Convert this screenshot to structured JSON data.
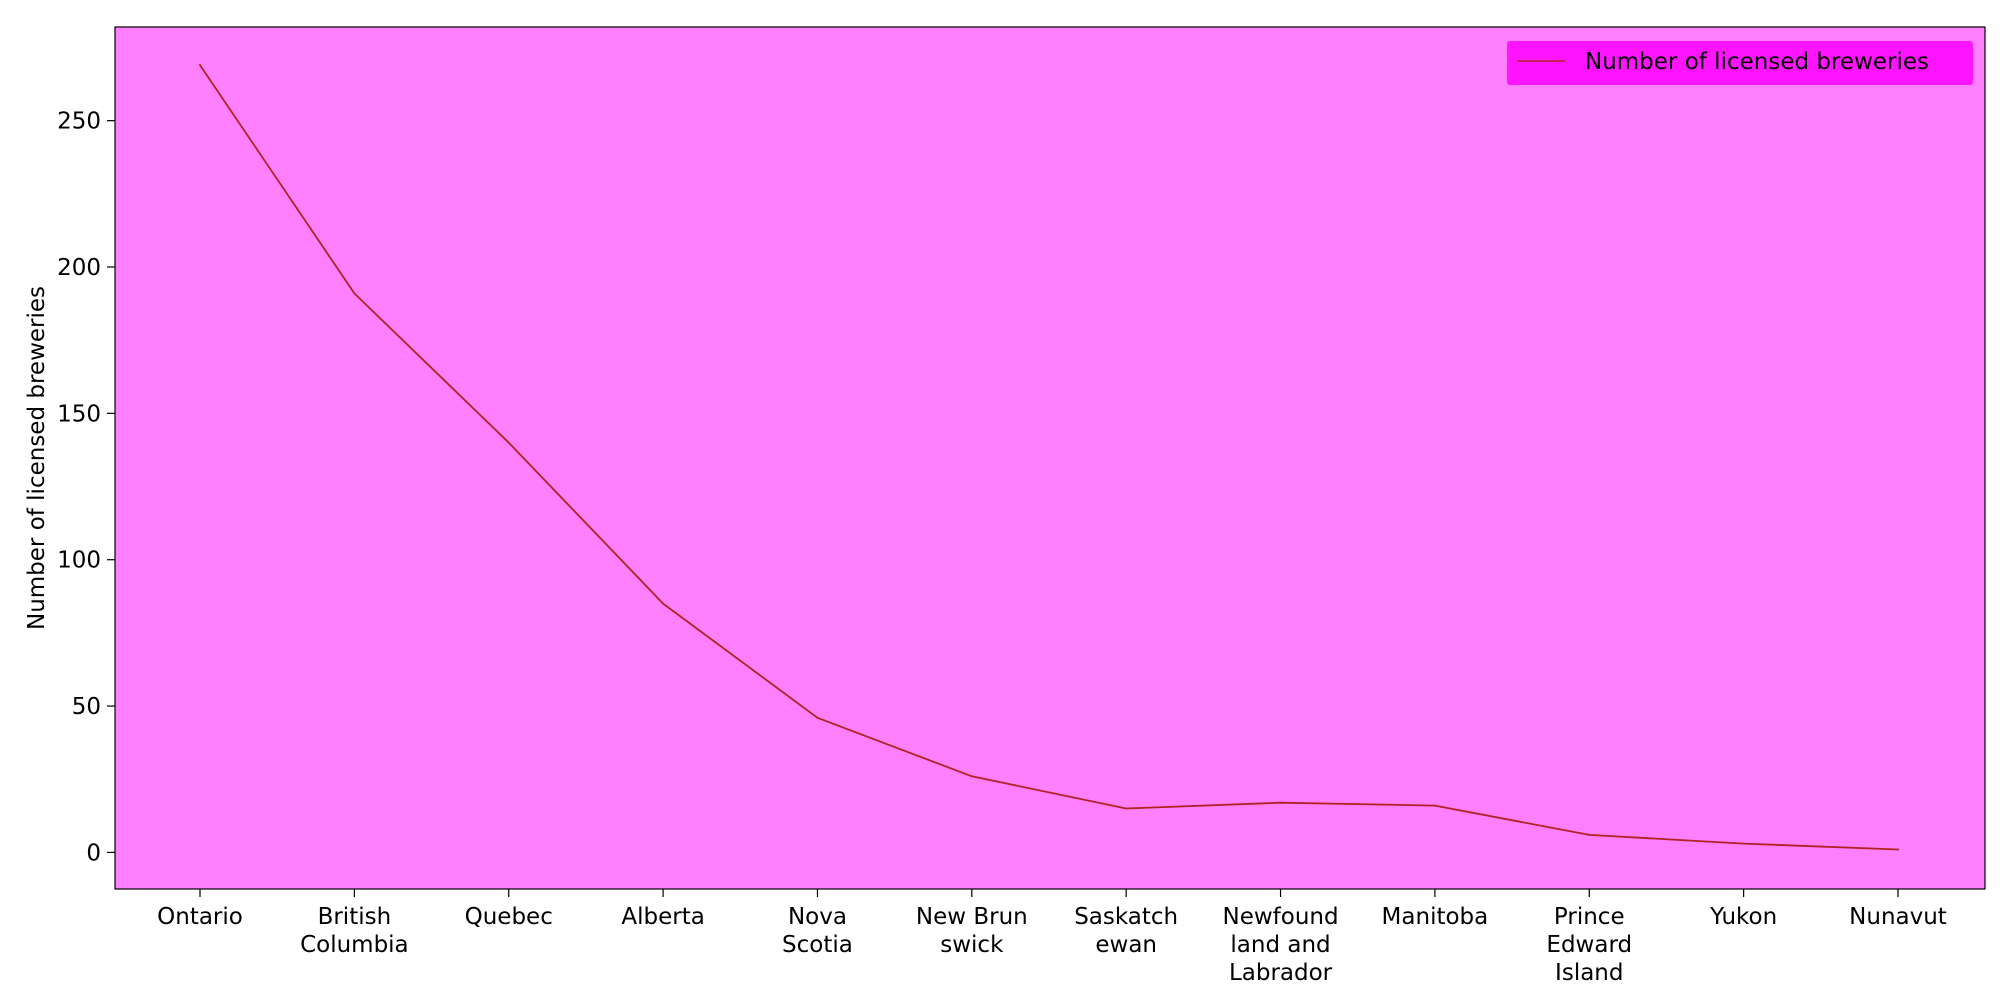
{
  "chart_data": {
    "type": "line",
    "title": "",
    "xlabel": "",
    "ylabel": "Number of licensed breweries",
    "categories": [
      [
        "Ontario"
      ],
      [
        "British",
        "Columbia"
      ],
      [
        "Quebec"
      ],
      [
        "Alberta"
      ],
      [
        "Nova",
        "Scotia"
      ],
      [
        "New Brun",
        "swick"
      ],
      [
        "Saskatch",
        "ewan"
      ],
      [
        "Newfound",
        "land and",
        "Labrador"
      ],
      [
        "Manitoba"
      ],
      [
        "Prince",
        "Edward",
        "Island"
      ],
      [
        "Yukon"
      ],
      [
        "Nunavut"
      ]
    ],
    "series": [
      {
        "name": "Number of licensed breweries",
        "values": [
          269,
          191,
          140,
          85,
          46,
          26,
          15,
          17,
          16,
          6,
          3,
          1
        ]
      }
    ],
    "ylim": [
      -12.5,
      282
    ],
    "yticks": [
      0,
      50,
      100,
      150,
      200,
      250
    ],
    "grid": false,
    "legend_position": "top-right",
    "colors": {
      "plot_background": "#ff80ff",
      "line": "#b22222",
      "legend_background": "#ff14ff",
      "axes": "#000000"
    }
  }
}
